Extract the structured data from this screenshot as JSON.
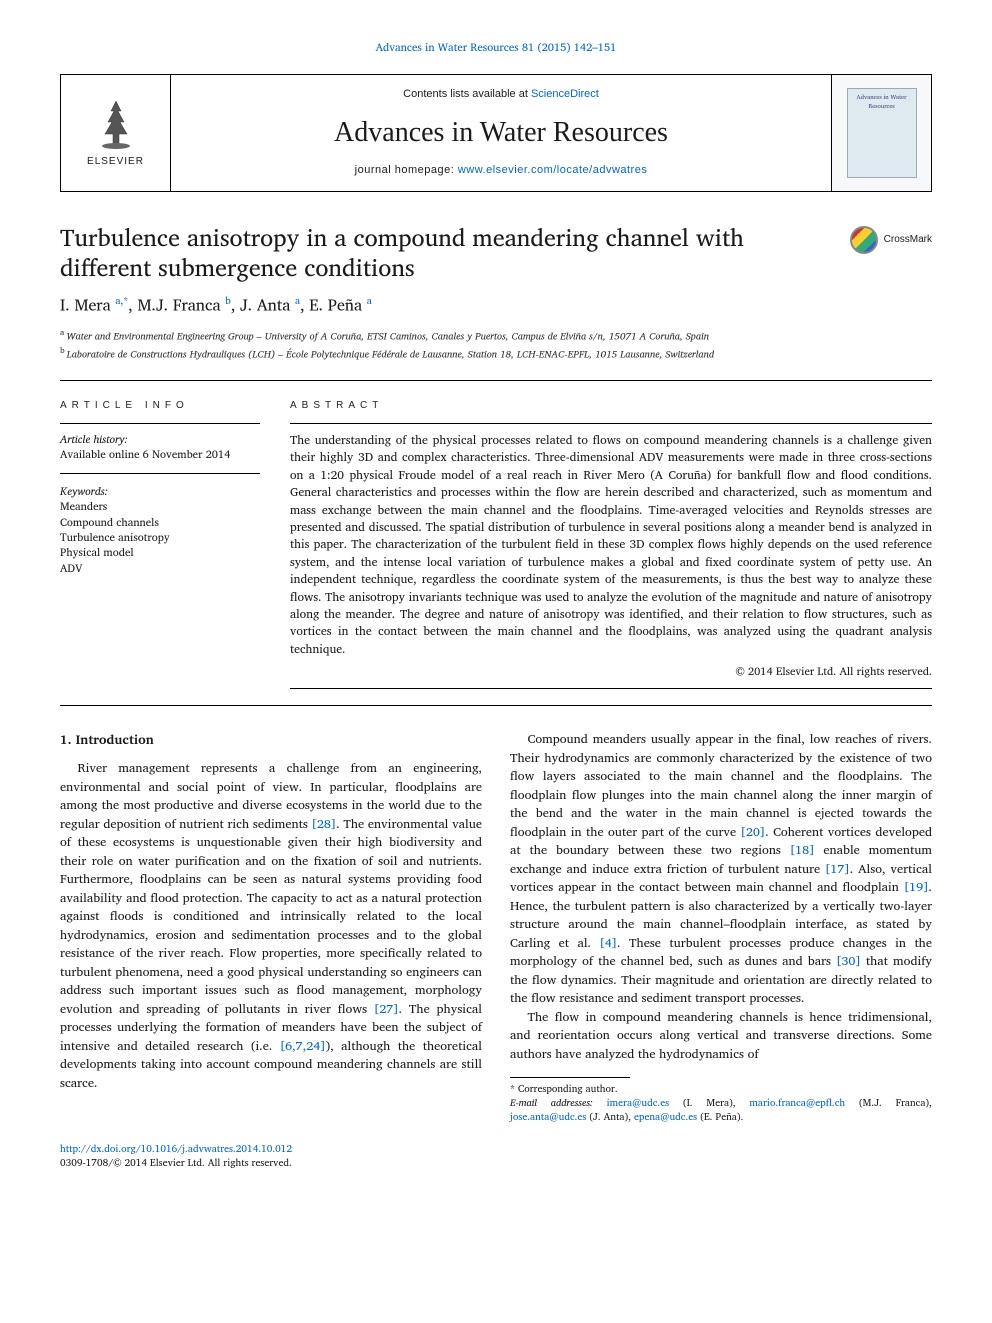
{
  "journal_ref": "Advances in Water Resources 81 (2015) 142–151",
  "masthead": {
    "publisher": "ELSEVIER",
    "contents_prefix": "Contents lists available at ",
    "contents_link": "ScienceDirect",
    "journal": "Advances in Water Resources",
    "homepage_prefix": "journal homepage: ",
    "homepage": "www.elsevier.com/locate/advwatres",
    "cover_text": "Advances in Water Resources"
  },
  "crossmark": "CrossMark",
  "title": "Turbulence anisotropy in a compound meandering channel with different submergence conditions",
  "authors_html": "I. Mera <sup>a,*</sup>, M.J. Franca <sup>b</sup>, J. Anta <sup>a</sup>, E. Peña <sup>a</sup>",
  "affiliations": {
    "a": "Water and Environmental Engineering Group – University of A Coruña, ETSI Caminos, Canales y Puertos, Campus de Elviña s/n, 15071 A Coruña, Spain",
    "b": "Laboratoire de Constructions Hydrauliques (LCH) – École Polytechnique Fédérale de Lausanne, Station 18, LCH-ENAC-EPFL, 1015 Lausanne, Switzerland"
  },
  "info_heading": "ARTICLE INFO",
  "abstract_heading": "ABSTRACT",
  "history_label": "Article history:",
  "history_line": "Available online 6 November 2014",
  "keywords_label": "Keywords:",
  "keywords": [
    "Meanders",
    "Compound channels",
    "Turbulence anisotropy",
    "Physical model",
    "ADV"
  ],
  "abstract": "The understanding of the physical processes related to flows on compound meandering channels is a challenge given their highly 3D and complex characteristics. Three-dimensional ADV measurements were made in three cross-sections on a 1:20 physical Froude model of a real reach in River Mero (A Coruña) for bankfull flow and flood conditions. General characteristics and processes within the flow are herein described and characterized, such as momentum and mass exchange between the main channel and the floodplains. Time-averaged velocities and Reynolds stresses are presented and discussed. The spatial distribution of turbulence in several positions along a meander bend is analyzed in this paper. The characterization of the turbulent field in these 3D complex flows highly depends on the used reference system, and the intense local variation of turbulence makes a global and fixed coordinate system of petty use. An independent technique, regardless the coordinate system of the measurements, is thus the best way to analyze these flows. The anisotropy invariants technique was used to analyze the evolution of the magnitude and nature of anisotropy along the meander. The degree and nature of anisotropy was identified, and their relation to flow structures, such as vortices in the contact between the main channel and the floodplains, was analyzed using the quadrant analysis technique.",
  "copyright": "© 2014 Elsevier Ltd. All rights reserved.",
  "section_heading": "1. Introduction",
  "body": {
    "p1a": "River management represents a challenge from an engineering, environmental and social point of view. In particular, floodplains are among the most productive and diverse ecosystems in the world due to the regular deposition of nutrient rich sediments ",
    "c28": "[28]",
    "p1b": ". The environmental value of these ecosystems is unquestionable given their high biodiversity and their role on water purification and on the fixation of soil and nutrients. Furthermore, floodplains can be seen as natural systems providing food availability and flood protection. The capacity to act as a natural protection against floods is conditioned and intrinsically related to the local hydrodynamics, erosion and sedimentation processes and to the global resistance of the river reach. Flow properties, more specifically related to turbulent phenomena, need a good physical understanding so engineers can address such important issues such as flood management, morphology evolution and spreading of pollutants in river flows ",
    "c27": "[27]",
    "p1c": ". The physical processes underlying the formation of meanders have been the subject of intensive and detailed research (i.e. ",
    "c6724": "[6,7,24]",
    "p1d": "), although the theoretical developments taking into account compound meandering channels are still scarce.",
    "p2a": "Compound meanders usually appear in the final, low reaches of rivers. Their hydrodynamics are commonly characterized by the existence of two flow layers associated to the main channel and the floodplains. The floodplain flow plunges into the main channel along the inner margin of the bend and the water in the main channel is ejected towards the floodplain in the outer part of the curve ",
    "c20": "[20]",
    "p2b": ". Coherent vortices developed at the boundary between these two regions ",
    "c18": "[18]",
    "p2c": " enable momentum exchange and induce extra friction of turbulent nature ",
    "c17": "[17]",
    "p2d": ". Also, vertical vortices appear in the contact between main channel and floodplain ",
    "c19": "[19]",
    "p2e": ". Hence, the turbulent pattern is also characterized by a vertically two-layer structure around the main channel–floodplain interface, as stated by Carling et al. ",
    "c4": "[4]",
    "p2f": ". These turbulent processes produce changes in the morphology of the channel bed, such as dunes and bars ",
    "c30": "[30]",
    "p2g": " that modify the flow dynamics. Their magnitude and orientation are directly related to the flow resistance and sediment transport processes.",
    "p3": "The flow in compound meandering channels is hence tridimensional, and reorientation occurs along vertical and transverse directions. Some authors have analyzed the hydrodynamics of"
  },
  "footnotes": {
    "corr": "* Corresponding author.",
    "email_label": "E-mail addresses: ",
    "e1": "imera@udc.es",
    "n1": " (I. Mera), ",
    "e2": "mario.franca@epfl.ch",
    "n2": " (M.J. Franca), ",
    "e3": "jose.anta@udc.es",
    "n3": " (J. Anta), ",
    "e4": "epena@udc.es",
    "n4": " (E. Peña)."
  },
  "footer": {
    "doi": "http://dx.doi.org/10.1016/j.advwatres.2014.10.012",
    "issn_line": "0309-1708/© 2014 Elsevier Ltd. All rights reserved."
  },
  "colors": {
    "link": "#0066cc",
    "text": "#1a1a1a",
    "rule": "#000000"
  }
}
